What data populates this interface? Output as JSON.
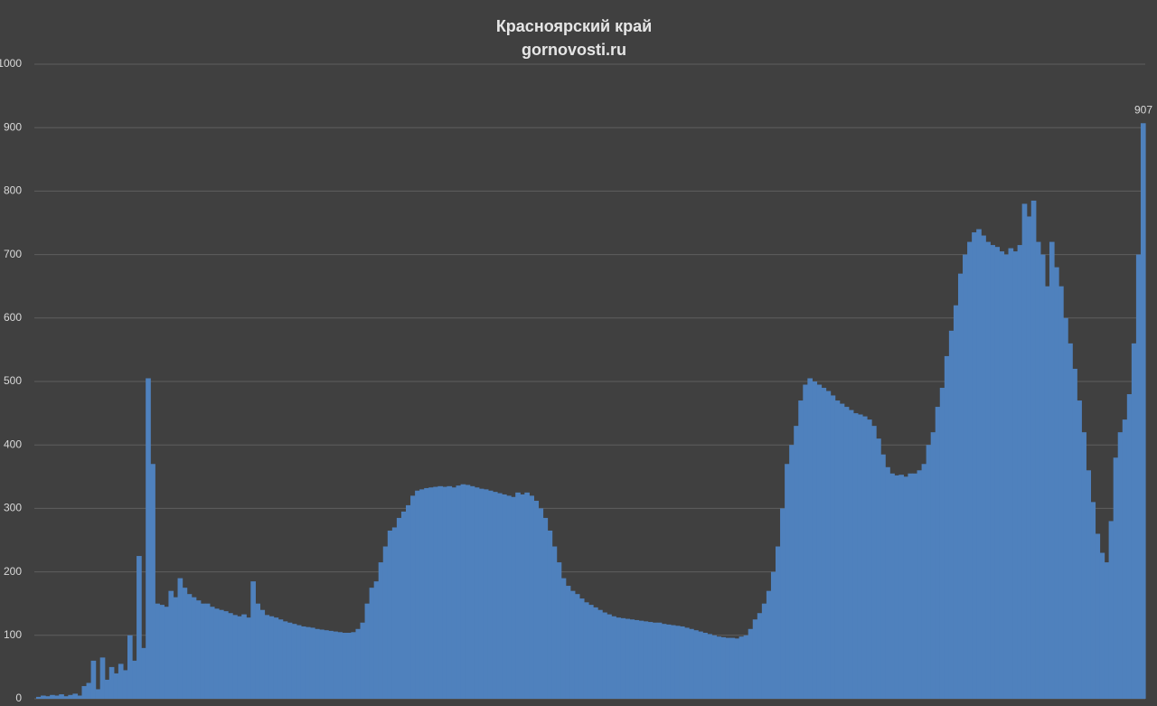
{
  "chart_data": {
    "type": "bar",
    "title": "Красноярский край",
    "subtitle": "gornovosti.ru",
    "color": "#4f81bd",
    "grid": true,
    "ylim": [
      0,
      1000
    ],
    "yticks": [
      0,
      100,
      200,
      300,
      400,
      500,
      600,
      700,
      800,
      900,
      1000
    ],
    "values": [
      3,
      5,
      4,
      6,
      5,
      7,
      4,
      6,
      8,
      5,
      20,
      25,
      60,
      15,
      65,
      30,
      50,
      40,
      55,
      45,
      100,
      60,
      225,
      80,
      505,
      370,
      150,
      148,
      145,
      170,
      160,
      190,
      175,
      165,
      160,
      155,
      150,
      150,
      145,
      142,
      140,
      138,
      135,
      132,
      130,
      133,
      128,
      185,
      150,
      140,
      132,
      130,
      128,
      125,
      122,
      120,
      118,
      116,
      114,
      113,
      112,
      110,
      109,
      108,
      107,
      106,
      105,
      104,
      104,
      105,
      110,
      120,
      150,
      175,
      185,
      215,
      240,
      265,
      270,
      285,
      295,
      305,
      320,
      328,
      330,
      332,
      333,
      334,
      335,
      334,
      335,
      333,
      336,
      338,
      337,
      335,
      333,
      331,
      330,
      328,
      326,
      324,
      322,
      320,
      318,
      325,
      322,
      325,
      320,
      312,
      300,
      285,
      265,
      240,
      215,
      190,
      178,
      170,
      165,
      158,
      152,
      148,
      144,
      140,
      136,
      133,
      130,
      128,
      127,
      126,
      125,
      124,
      123,
      122,
      121,
      120,
      120,
      118,
      117,
      116,
      115,
      114,
      112,
      110,
      108,
      106,
      104,
      102,
      100,
      98,
      97,
      96,
      96,
      95,
      98,
      100,
      110,
      125,
      135,
      150,
      170,
      200,
      240,
      300,
      370,
      400,
      430,
      470,
      495,
      505,
      500,
      495,
      490,
      485,
      478,
      470,
      465,
      460,
      455,
      450,
      448,
      445,
      440,
      430,
      410,
      385,
      365,
      355,
      352,
      353,
      350,
      355,
      355,
      360,
      370,
      400,
      420,
      460,
      490,
      540,
      580,
      620,
      670,
      700,
      720,
      735,
      740,
      730,
      720,
      715,
      712,
      705,
      700,
      710,
      705,
      715,
      780,
      760,
      785,
      720,
      700,
      650,
      720,
      680,
      650,
      600,
      560,
      520,
      470,
      420,
      360,
      310,
      260,
      230,
      215,
      280,
      380,
      420,
      440,
      480,
      560,
      700,
      907
    ]
  }
}
